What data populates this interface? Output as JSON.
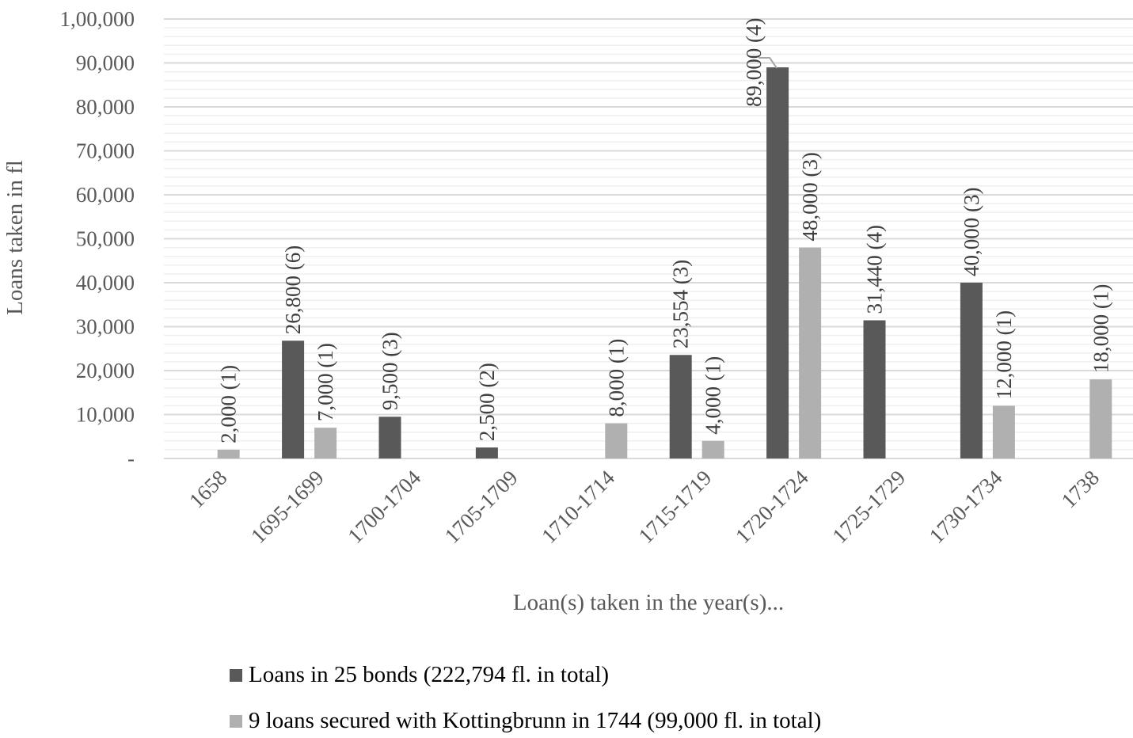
{
  "chart_data": {
    "type": "bar",
    "title": "",
    "xlabel": "Loan(s) taken in the year(s)...",
    "ylabel": "Loans taken in fl",
    "ylim": [
      0,
      100000
    ],
    "yticks": [
      "-",
      "10,000",
      "20,000",
      "30,000",
      "40,000",
      "50,000",
      "60,000",
      "70,000",
      "80,000",
      "90,000",
      "1,00,000"
    ],
    "grid": true,
    "legend_position": "bottom",
    "categories": [
      "1658",
      "1695-1699",
      "1700-1704",
      "1705-1709",
      "1710-1714",
      "1715-1719",
      "1720-1724",
      "1725-1729",
      "1730-1734",
      "1738"
    ],
    "series": [
      {
        "name": "Loans in 25 bonds (222,794 fl. in total)",
        "color": "#595959",
        "values": [
          0,
          26800,
          9500,
          2500,
          0,
          23554,
          89000,
          31440,
          40000,
          0
        ],
        "labels": [
          "",
          "26,800 (6)",
          "9,500 (3)",
          "2,500 (2)",
          "",
          "23,554 (3)",
          "89,000 (4)",
          "31,440 (4)",
          "40,000 (3)",
          ""
        ]
      },
      {
        "name": "9 loans secured with Kottingbrunn in 1744 (99,000 fl. in total)",
        "color": "#b0b0b0",
        "values": [
          2000,
          7000,
          0,
          0,
          8000,
          4000,
          48000,
          0,
          12000,
          18000
        ],
        "labels": [
          "2,000 (1)",
          "7,000 (1)",
          "",
          "",
          "8,000 (1)",
          "4,000  (1)",
          "48,000 (3)",
          "",
          "12,000 (1)",
          "18,000 (1)"
        ]
      }
    ]
  },
  "legend": {
    "items": [
      {
        "label": "Loans in 25 bonds (222,794 fl. in total)",
        "color": "#595959"
      },
      {
        "label": "9 loans secured with Kottingbrunn in 1744 (99,000 fl. in total)",
        "color": "#b0b0b0"
      }
    ]
  }
}
